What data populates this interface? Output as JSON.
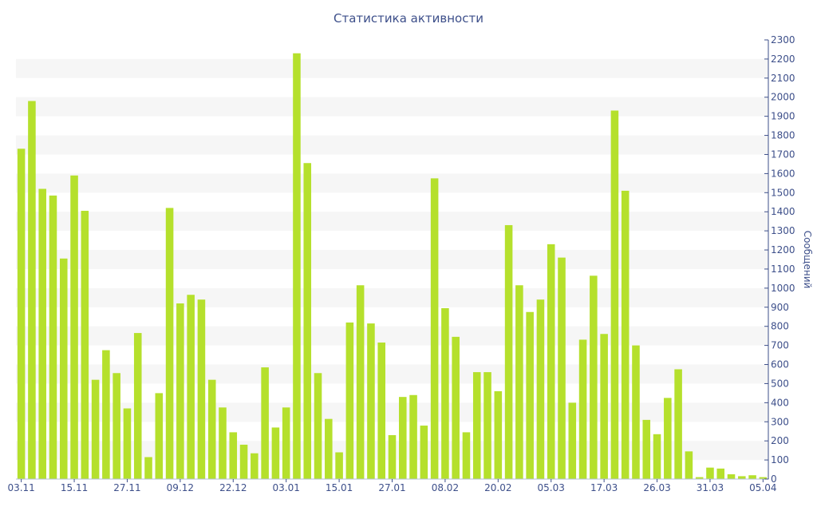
{
  "chart_data": {
    "type": "bar",
    "title": "Статистика активности",
    "ylabel": "Сообщений",
    "xlabel": "",
    "ylim": [
      0,
      2300
    ],
    "y_ticks": [
      0,
      100,
      200,
      300,
      400,
      500,
      600,
      700,
      800,
      900,
      1000,
      1100,
      1200,
      1300,
      1400,
      1500,
      1600,
      1700,
      1800,
      1900,
      2000,
      2100,
      2200,
      2300
    ],
    "y_axis_position": "right",
    "grid": "alternating horizontal bands",
    "bar_color": "#b5e02c",
    "band_color": "#f6f6f6",
    "text_color": "#3d4f8a",
    "x_tick_labels": [
      {
        "index": 0,
        "label": "03.11"
      },
      {
        "index": 5,
        "label": "15.11"
      },
      {
        "index": 10,
        "label": "27.11"
      },
      {
        "index": 15,
        "label": "09.12"
      },
      {
        "index": 20,
        "label": "22.12"
      },
      {
        "index": 25,
        "label": "03.01"
      },
      {
        "index": 30,
        "label": "15.01"
      },
      {
        "index": 35,
        "label": "27.01"
      },
      {
        "index": 40,
        "label": "08.02"
      },
      {
        "index": 45,
        "label": "20.02"
      },
      {
        "index": 50,
        "label": "05.03"
      },
      {
        "index": 55,
        "label": "17.03"
      },
      {
        "index": 60,
        "label": "26.03"
      },
      {
        "index": 65,
        "label": "31.03"
      },
      {
        "index": 70,
        "label": "05.04"
      }
    ],
    "values": [
      1730,
      1980,
      1520,
      1485,
      1155,
      1590,
      1405,
      520,
      675,
      555,
      370,
      765,
      115,
      450,
      1420,
      920,
      965,
      940,
      520,
      375,
      245,
      180,
      135,
      585,
      270,
      375,
      2230,
      1655,
      555,
      315,
      140,
      820,
      1015,
      815,
      715,
      230,
      430,
      440,
      280,
      1575,
      895,
      745,
      245,
      560,
      560,
      460,
      1330,
      1015,
      875,
      940,
      1230,
      1160,
      400,
      730,
      1065,
      760,
      1930,
      1510,
      700,
      310,
      235,
      425,
      575,
      145,
      10,
      60,
      55,
      25,
      15,
      20,
      10
    ]
  }
}
